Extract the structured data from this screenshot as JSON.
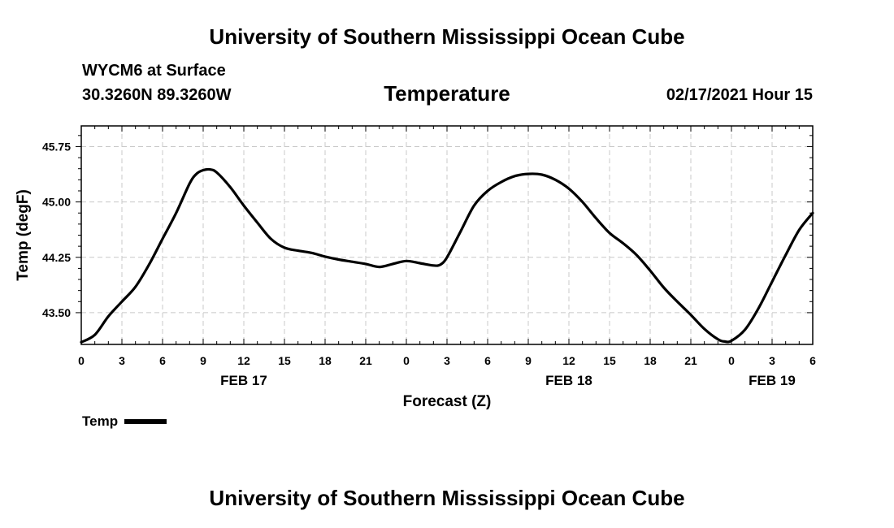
{
  "header": {
    "org_title": "University of Southern Mississippi Ocean Cube",
    "station": "WYCM6 at Surface",
    "latlon": "30.3260N 89.3260W",
    "variable": "Temperature",
    "datetime": "02/17/2021 Hour 15"
  },
  "footer": {
    "org_title": "University of Southern Mississippi Ocean Cube"
  },
  "legend": {
    "label": "Temp",
    "color": "#000000"
  },
  "chart_data": {
    "type": "line",
    "title": "Temperature",
    "xlabel": "Forecast (Z)",
    "ylabel": "Temp (degF)",
    "xlim": [
      0,
      54
    ],
    "ylim": [
      43.07,
      46.03
    ],
    "yticks": [
      43.5,
      44.25,
      45.0,
      45.75
    ],
    "ytick_labels": [
      "43.50",
      "44.25",
      "45.00",
      "45.75"
    ],
    "xticks": [
      0,
      3,
      6,
      9,
      12,
      15,
      18,
      21,
      24,
      27,
      30,
      33,
      36,
      39,
      42,
      45,
      48,
      51,
      54
    ],
    "xtick_labels": [
      "0",
      "3",
      "6",
      "9",
      "12",
      "15",
      "18",
      "21",
      "0",
      "3",
      "6",
      "9",
      "12",
      "15",
      "18",
      "21",
      "0",
      "3",
      "6"
    ],
    "date_labels": [
      {
        "x": 12,
        "label": "FEB 17"
      },
      {
        "x": 36,
        "label": "FEB 18"
      },
      {
        "x": 51,
        "label": "FEB 19"
      }
    ],
    "grid": true,
    "series": [
      {
        "name": "Temp",
        "color": "#000000",
        "x": [
          0,
          1,
          2,
          3,
          4,
          5,
          6,
          7,
          8,
          8.5,
          9,
          9.5,
          10,
          11,
          12,
          13,
          14,
          15,
          16,
          17,
          18,
          19,
          20,
          21,
          22,
          23,
          24,
          25,
          26,
          26.5,
          27,
          28,
          29,
          30,
          31,
          32,
          33,
          34,
          35,
          36,
          37,
          38,
          39,
          40,
          41,
          42,
          43,
          44,
          45,
          46,
          47,
          47.5,
          48,
          49,
          50,
          51,
          52,
          53,
          54
        ],
        "y": [
          43.1,
          43.2,
          43.45,
          43.65,
          43.85,
          44.15,
          44.5,
          44.85,
          45.25,
          45.38,
          45.43,
          45.44,
          45.4,
          45.2,
          44.95,
          44.72,
          44.5,
          44.38,
          44.34,
          44.31,
          44.26,
          44.22,
          44.19,
          44.16,
          44.12,
          44.16,
          44.2,
          44.17,
          44.14,
          44.15,
          44.25,
          44.6,
          44.95,
          45.15,
          45.27,
          45.35,
          45.38,
          45.37,
          45.3,
          45.18,
          45.0,
          44.78,
          44.58,
          44.44,
          44.28,
          44.07,
          43.84,
          43.65,
          43.47,
          43.28,
          43.14,
          43.11,
          43.12,
          43.27,
          43.56,
          43.92,
          44.28,
          44.62,
          44.85
        ]
      }
    ]
  }
}
